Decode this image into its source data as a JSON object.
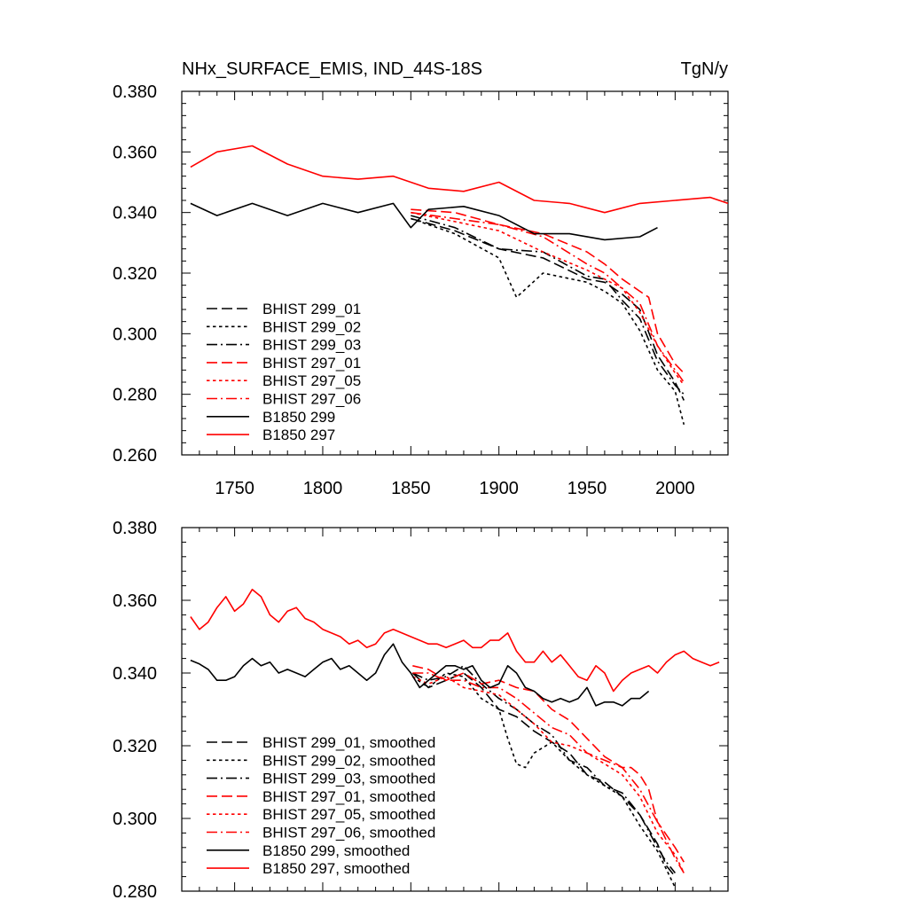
{
  "chart_data": [
    {
      "type": "line",
      "title": "NHx_SURFACE_EMIS, IND_44S-18S",
      "units": "TgN/y",
      "xlim": [
        1720,
        2030
      ],
      "ylim": [
        0.26,
        0.38
      ],
      "x_ticks": [
        1750,
        1800,
        1850,
        1900,
        1950,
        2000
      ],
      "x_tick_labels": [
        "1750",
        "1800",
        "1850",
        "1900",
        "1950",
        "2000"
      ],
      "y_ticks": [
        0.26,
        0.28,
        0.3,
        0.32,
        0.34,
        0.36,
        0.38
      ],
      "y_tick_labels": [
        "0.260",
        "0.280",
        "0.300",
        "0.320",
        "0.340",
        "0.360",
        "0.380"
      ],
      "legend_position": "bottom-left",
      "series": [
        {
          "name": "BHIST 299_01",
          "color": "#000000",
          "dash": "dashed",
          "x": [
            1850,
            1875,
            1900,
            1925,
            1950,
            1960,
            1970,
            1980,
            1990,
            2000,
            2005
          ],
          "y": [
            0.338,
            0.334,
            0.328,
            0.325,
            0.318,
            0.317,
            0.313,
            0.308,
            0.293,
            0.284,
            0.278
          ]
        },
        {
          "name": "BHIST 299_02",
          "color": "#000000",
          "dash": "dotted",
          "x": [
            1850,
            1875,
            1900,
            1910,
            1925,
            1950,
            1960,
            1970,
            1980,
            1990,
            2000,
            2005
          ],
          "y": [
            0.338,
            0.333,
            0.325,
            0.312,
            0.32,
            0.317,
            0.314,
            0.31,
            0.301,
            0.288,
            0.281,
            0.27
          ]
        },
        {
          "name": "BHIST 299_03",
          "color": "#000000",
          "dash": "dashdot",
          "x": [
            1850,
            1875,
            1900,
            1925,
            1950,
            1960,
            1970,
            1980,
            1990,
            2000,
            2005
          ],
          "y": [
            0.339,
            0.335,
            0.328,
            0.327,
            0.319,
            0.318,
            0.311,
            0.305,
            0.291,
            0.283,
            0.28
          ]
        },
        {
          "name": "BHIST 297_01",
          "color": "#ff0000",
          "dash": "dashed",
          "x": [
            1850,
            1875,
            1900,
            1925,
            1950,
            1960,
            1970,
            1980,
            1985,
            1990,
            2000,
            2005
          ],
          "y": [
            0.341,
            0.34,
            0.336,
            0.333,
            0.327,
            0.323,
            0.318,
            0.314,
            0.312,
            0.3,
            0.29,
            0.287
          ]
        },
        {
          "name": "BHIST 297_05",
          "color": "#ff0000",
          "dash": "dotted",
          "x": [
            1850,
            1875,
            1900,
            1925,
            1950,
            1960,
            1970,
            1980,
            1990,
            2000,
            2005
          ],
          "y": [
            0.34,
            0.337,
            0.334,
            0.327,
            0.321,
            0.318,
            0.315,
            0.307,
            0.296,
            0.287,
            0.283
          ]
        },
        {
          "name": "BHIST 297_06",
          "color": "#ff0000",
          "dash": "dashdot",
          "x": [
            1850,
            1875,
            1900,
            1925,
            1950,
            1960,
            1970,
            1980,
            1990,
            2000,
            2005
          ],
          "y": [
            0.34,
            0.338,
            0.336,
            0.332,
            0.323,
            0.32,
            0.315,
            0.31,
            0.296,
            0.288,
            0.284
          ]
        },
        {
          "name": "B1850 299",
          "color": "#000000",
          "dash": "solid",
          "x": [
            1725,
            1740,
            1760,
            1780,
            1800,
            1820,
            1840,
            1850,
            1860,
            1880,
            1900,
            1920,
            1940,
            1960,
            1980,
            1990
          ],
          "y": [
            0.343,
            0.339,
            0.343,
            0.339,
            0.343,
            0.34,
            0.343,
            0.335,
            0.341,
            0.342,
            0.339,
            0.333,
            0.333,
            0.331,
            0.332,
            0.335
          ]
        },
        {
          "name": "B1850 297",
          "color": "#ff0000",
          "dash": "solid",
          "x": [
            1725,
            1740,
            1760,
            1780,
            1800,
            1820,
            1840,
            1860,
            1880,
            1900,
            1920,
            1940,
            1960,
            1980,
            2000,
            2020,
            2030
          ],
          "y": [
            0.355,
            0.36,
            0.362,
            0.356,
            0.352,
            0.351,
            0.352,
            0.348,
            0.347,
            0.35,
            0.344,
            0.343,
            0.34,
            0.343,
            0.344,
            0.345,
            0.343
          ]
        }
      ]
    },
    {
      "type": "line",
      "xlim": [
        1720,
        2030
      ],
      "ylim": [
        0.28,
        0.38
      ],
      "x_ticks": [
        1750,
        1800,
        1850,
        1900,
        1950,
        2000
      ],
      "y_ticks": [
        0.28,
        0.3,
        0.32,
        0.34,
        0.36,
        0.38
      ],
      "y_tick_labels": [
        "0.280",
        "0.300",
        "0.320",
        "0.340",
        "0.360",
        "0.380"
      ],
      "legend_position": "bottom-left",
      "series": [
        {
          "name": "BHIST 299_01, smoothed",
          "color": "#000000",
          "dash": "dashed",
          "x": [
            1851,
            1860,
            1870,
            1880,
            1890,
            1900,
            1910,
            1920,
            1930,
            1940,
            1950,
            1960,
            1970,
            1980,
            1990,
            1995,
            2000
          ],
          "y": [
            0.34,
            0.336,
            0.338,
            0.34,
            0.336,
            0.33,
            0.328,
            0.324,
            0.321,
            0.318,
            0.312,
            0.31,
            0.306,
            0.301,
            0.293,
            0.287,
            0.284
          ]
        },
        {
          "name": "BHIST 299_02, smoothed",
          "color": "#000000",
          "dash": "dotted",
          "x": [
            1851,
            1860,
            1870,
            1880,
            1890,
            1900,
            1905,
            1910,
            1915,
            1920,
            1930,
            1940,
            1950,
            1960,
            1970,
            1980,
            1990,
            1995,
            2000
          ],
          "y": [
            0.339,
            0.336,
            0.34,
            0.339,
            0.333,
            0.33,
            0.322,
            0.315,
            0.314,
            0.318,
            0.321,
            0.316,
            0.312,
            0.309,
            0.306,
            0.298,
            0.291,
            0.286,
            0.281
          ]
        },
        {
          "name": "BHIST 299_03, smoothed",
          "color": "#000000",
          "dash": "dashdot",
          "x": [
            1851,
            1860,
            1870,
            1880,
            1890,
            1900,
            1910,
            1920,
            1930,
            1940,
            1950,
            1960,
            1970,
            1980,
            1990,
            1995,
            2000
          ],
          "y": [
            0.34,
            0.338,
            0.339,
            0.342,
            0.337,
            0.333,
            0.33,
            0.326,
            0.323,
            0.316,
            0.314,
            0.309,
            0.307,
            0.301,
            0.292,
            0.288,
            0.285
          ]
        },
        {
          "name": "BHIST 297_01, smoothed",
          "color": "#ff0000",
          "dash": "dashed",
          "x": [
            1851,
            1860,
            1870,
            1880,
            1890,
            1900,
            1910,
            1920,
            1930,
            1940,
            1950,
            1960,
            1970,
            1975,
            1980,
            1985,
            1990,
            2000,
            2005
          ],
          "y": [
            0.342,
            0.341,
            0.338,
            0.34,
            0.337,
            0.338,
            0.336,
            0.335,
            0.33,
            0.327,
            0.322,
            0.317,
            0.314,
            0.314,
            0.312,
            0.308,
            0.299,
            0.292,
            0.288
          ]
        },
        {
          "name": "BHIST 297_05, smoothed",
          "color": "#ff0000",
          "dash": "dotted",
          "x": [
            1851,
            1860,
            1870,
            1880,
            1890,
            1900,
            1910,
            1920,
            1930,
            1940,
            1950,
            1960,
            1970,
            1980,
            1990,
            2000,
            2005
          ],
          "y": [
            0.339,
            0.337,
            0.339,
            0.336,
            0.335,
            0.334,
            0.33,
            0.326,
            0.321,
            0.32,
            0.318,
            0.315,
            0.312,
            0.306,
            0.296,
            0.29,
            0.285
          ]
        },
        {
          "name": "BHIST 297_06, smoothed",
          "color": "#ff0000",
          "dash": "dashdot",
          "x": [
            1851,
            1860,
            1870,
            1880,
            1890,
            1900,
            1910,
            1920,
            1930,
            1940,
            1950,
            1960,
            1970,
            1980,
            1990,
            2000,
            2005
          ],
          "y": [
            0.34,
            0.34,
            0.338,
            0.338,
            0.336,
            0.336,
            0.333,
            0.329,
            0.325,
            0.323,
            0.318,
            0.316,
            0.314,
            0.308,
            0.299,
            0.289,
            0.285
          ]
        },
        {
          "name": "B1850 299, smoothed",
          "color": "#000000",
          "dash": "solid",
          "x": [
            1725,
            1730,
            1735,
            1740,
            1745,
            1750,
            1755,
            1760,
            1765,
            1770,
            1775,
            1780,
            1785,
            1790,
            1795,
            1800,
            1805,
            1810,
            1815,
            1820,
            1825,
            1830,
            1835,
            1840,
            1845,
            1850,
            1855,
            1860,
            1865,
            1870,
            1875,
            1880,
            1885,
            1890,
            1895,
            1900,
            1905,
            1910,
            1915,
            1920,
            1925,
            1930,
            1935,
            1940,
            1945,
            1950,
            1955,
            1960,
            1965,
            1970,
            1975,
            1980,
            1985
          ],
          "y": [
            0.3435,
            0.3425,
            0.341,
            0.338,
            0.338,
            0.339,
            0.342,
            0.344,
            0.342,
            0.343,
            0.34,
            0.341,
            0.34,
            0.339,
            0.341,
            0.343,
            0.344,
            0.341,
            0.342,
            0.34,
            0.338,
            0.34,
            0.345,
            0.348,
            0.343,
            0.34,
            0.336,
            0.338,
            0.34,
            0.342,
            0.342,
            0.341,
            0.342,
            0.338,
            0.336,
            0.337,
            0.342,
            0.34,
            0.336,
            0.335,
            0.333,
            0.332,
            0.333,
            0.332,
            0.333,
            0.336,
            0.331,
            0.332,
            0.332,
            0.331,
            0.333,
            0.333,
            0.335
          ]
        },
        {
          "name": "B1850 297, smoothed",
          "color": "#ff0000",
          "dash": "solid",
          "x": [
            1725,
            1730,
            1735,
            1740,
            1745,
            1750,
            1755,
            1760,
            1765,
            1770,
            1775,
            1780,
            1785,
            1790,
            1795,
            1800,
            1805,
            1810,
            1815,
            1820,
            1825,
            1830,
            1835,
            1840,
            1845,
            1850,
            1855,
            1860,
            1865,
            1870,
            1875,
            1880,
            1885,
            1890,
            1895,
            1900,
            1905,
            1910,
            1915,
            1920,
            1925,
            1930,
            1935,
            1940,
            1945,
            1950,
            1955,
            1960,
            1965,
            1970,
            1975,
            1980,
            1985,
            1990,
            1995,
            2000,
            2005,
            2010,
            2015,
            2020,
            2025
          ],
          "y": [
            0.3555,
            0.352,
            0.354,
            0.358,
            0.361,
            0.357,
            0.359,
            0.363,
            0.361,
            0.356,
            0.354,
            0.357,
            0.358,
            0.355,
            0.354,
            0.352,
            0.351,
            0.35,
            0.348,
            0.349,
            0.347,
            0.348,
            0.351,
            0.352,
            0.351,
            0.35,
            0.349,
            0.348,
            0.348,
            0.347,
            0.348,
            0.349,
            0.347,
            0.347,
            0.349,
            0.349,
            0.351,
            0.346,
            0.343,
            0.343,
            0.346,
            0.343,
            0.345,
            0.342,
            0.339,
            0.338,
            0.342,
            0.34,
            0.335,
            0.338,
            0.34,
            0.341,
            0.342,
            0.34,
            0.343,
            0.345,
            0.346,
            0.344,
            0.343,
            0.342,
            0.343
          ]
        }
      ]
    }
  ]
}
